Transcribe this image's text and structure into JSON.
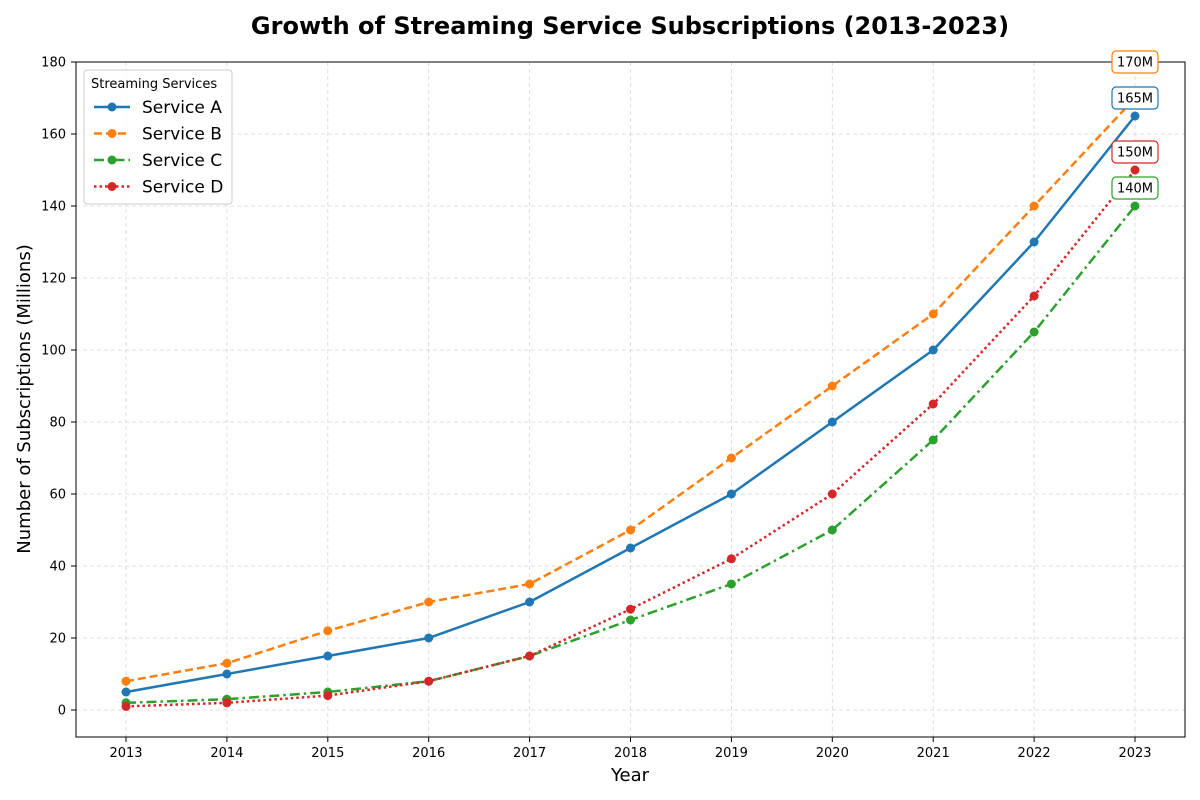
{
  "chart_data": {
    "type": "line",
    "title": "Growth of Streaming Service Subscriptions (2013-2023)",
    "xlabel": "Year",
    "ylabel": "Number of Subscriptions (Millions)",
    "categories": [
      "2013",
      "2014",
      "2015",
      "2016",
      "2017",
      "2018",
      "2019",
      "2020",
      "2021",
      "2022",
      "2023"
    ],
    "ylim": [
      -7.5,
      180
    ],
    "yticks": [
      0,
      20,
      40,
      60,
      80,
      100,
      120,
      140,
      160,
      180
    ],
    "grid": true,
    "legend": {
      "title": "Streaming Services",
      "placement": "top-left"
    },
    "series": [
      {
        "name": "Service A",
        "color": "#1f77b4",
        "line_style": "solid",
        "values": [
          5,
          10,
          15,
          20,
          30,
          45,
          60,
          80,
          100,
          130,
          165
        ],
        "end_label": "165M"
      },
      {
        "name": "Service B",
        "color": "#ff7f0e",
        "line_style": "dashed",
        "values": [
          8,
          13,
          22,
          30,
          35,
          50,
          70,
          90,
          110,
          140,
          170
        ],
        "end_label": "170M"
      },
      {
        "name": "Service C",
        "color": "#2ca02c",
        "line_style": "dashdot",
        "values": [
          2,
          3,
          5,
          8,
          15,
          25,
          35,
          50,
          75,
          105,
          140
        ],
        "end_label": "140M"
      },
      {
        "name": "Service D",
        "color": "#d62728",
        "line_style": "dotted",
        "values": [
          1,
          2,
          4,
          8,
          15,
          28,
          42,
          60,
          85,
          115,
          150
        ],
        "end_label": "150M"
      }
    ]
  }
}
